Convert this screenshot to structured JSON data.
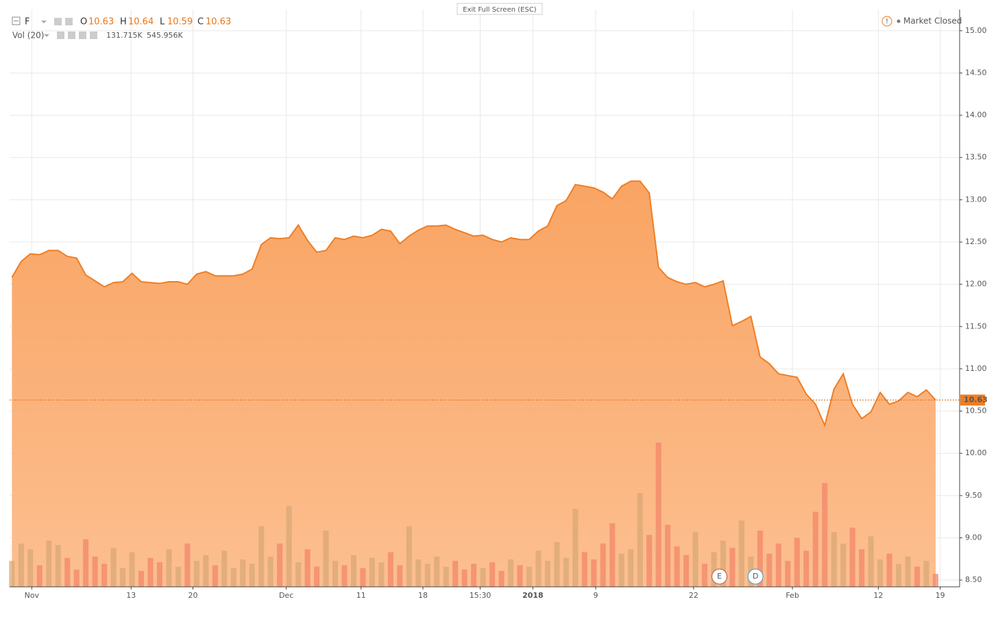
{
  "chart_data": {
    "type": "area",
    "symbol": "F",
    "ohlc": {
      "o_label": "O",
      "open": 10.63,
      "h_label": "H",
      "high": 10.64,
      "l_label": "L",
      "low": 10.59,
      "c_label": "C",
      "close": 10.63
    },
    "volume_label": "Vol (20)",
    "volume_values_text": [
      "131.715K",
      "545.956K"
    ],
    "status": "Market Closed",
    "exit_button": "Exit Full Screen (ESC)",
    "last_price": 10.63,
    "color": "#ef7d22",
    "volume_colors": {
      "up": "#d9a875",
      "down": "#f3876a"
    },
    "x": [
      0,
      1,
      2,
      3,
      4,
      5,
      6,
      7,
      8,
      9,
      10,
      11,
      12,
      13,
      14,
      15,
      16,
      17,
      18,
      19,
      20,
      21,
      22,
      23,
      24,
      25,
      26,
      27,
      28,
      29,
      30,
      31,
      32,
      33,
      34,
      35,
      36,
      37,
      38,
      39,
      40,
      41,
      42,
      43,
      44,
      45,
      46,
      47,
      48,
      49,
      50,
      51,
      52,
      53,
      54,
      55,
      56,
      57,
      58,
      59,
      60,
      61,
      62,
      63,
      64,
      65,
      66,
      67,
      68,
      69,
      70,
      71,
      72,
      73,
      74,
      75,
      76,
      77,
      78,
      79,
      80,
      81,
      82,
      83,
      84,
      85,
      86,
      87,
      88,
      89,
      90,
      91,
      92,
      93,
      94,
      95,
      96,
      97,
      98,
      99,
      100
    ],
    "series": [
      {
        "name": "F",
        "values": [
          12.08,
          12.27,
          12.36,
          12.35,
          12.4,
          12.4,
          12.33,
          12.31,
          12.11,
          12.04,
          11.97,
          12.02,
          12.03,
          12.13,
          12.03,
          12.02,
          12.01,
          12.03,
          12.03,
          12.0,
          12.12,
          12.15,
          12.1,
          12.1,
          12.1,
          12.12,
          12.18,
          12.47,
          12.55,
          12.54,
          12.55,
          12.7,
          12.52,
          12.38,
          12.4,
          12.55,
          12.53,
          12.57,
          12.55,
          12.58,
          12.65,
          12.63,
          12.48,
          12.57,
          12.64,
          12.69,
          12.69,
          12.7,
          12.65,
          12.61,
          12.57,
          12.58,
          12.53,
          12.5,
          12.55,
          12.53,
          12.53,
          12.63,
          12.69,
          12.93,
          12.99,
          13.18,
          13.16,
          13.14,
          13.09,
          13.01,
          13.16,
          13.22,
          13.22,
          13.08,
          12.2,
          12.08,
          12.03,
          12.0,
          12.02,
          11.97,
          12.0,
          12.04,
          11.51,
          11.56,
          11.62,
          11.14,
          11.06,
          10.94,
          10.92,
          10.9,
          10.7,
          10.58,
          10.33,
          10.76,
          10.94,
          10.58,
          10.41,
          10.49,
          10.72,
          10.58,
          10.62,
          10.72,
          10.67,
          10.75,
          10.63
        ]
      },
      {
        "name": "Vol (20)",
        "axis": "y2",
        "values": [
          180,
          300,
          260,
          150,
          320,
          290,
          200,
          120,
          330,
          210,
          160,
          270,
          130,
          240,
          110,
          200,
          170,
          260,
          140,
          300,
          180,
          220,
          150,
          250,
          130,
          190,
          160,
          420,
          210,
          300,
          560,
          170,
          260,
          140,
          390,
          180,
          150,
          220,
          130,
          200,
          170,
          240,
          150,
          420,
          190,
          160,
          210,
          140,
          180,
          120,
          160,
          130,
          170,
          110,
          190,
          150,
          140,
          250,
          180,
          310,
          200,
          540,
          240,
          190,
          300,
          440,
          230,
          260,
          650,
          360,
          1000,
          430,
          280,
          220,
          380,
          160,
          240,
          320,
          270,
          460,
          210,
          390,
          230,
          300,
          180,
          340,
          250,
          520,
          720,
          380,
          300,
          410,
          260,
          350,
          190,
          230,
          160,
          210,
          140,
          180,
          90
        ]
      }
    ],
    "xlim": [
      -0.25,
      102.6
    ],
    "xticks": [
      {
        "value": 2.15,
        "label": "Nov"
      },
      {
        "value": 12.9,
        "label": "13"
      },
      {
        "value": 19.6,
        "label": "20"
      },
      {
        "value": 29.7,
        "label": "Dec"
      },
      {
        "value": 37.8,
        "label": "11"
      },
      {
        "value": 44.5,
        "label": "18"
      },
      {
        "value": 50.7,
        "label": "15:30"
      },
      {
        "value": 56.4,
        "label": "2018"
      },
      {
        "value": 63.2,
        "label": "9"
      },
      {
        "value": 73.8,
        "label": "22"
      },
      {
        "value": 84.5,
        "label": "Feb"
      },
      {
        "value": 93.8,
        "label": "12"
      },
      {
        "value": 100.5,
        "label": "19"
      }
    ],
    "ylim": [
      8.42,
      15.25
    ],
    "yticks": [
      {
        "value": 8.5,
        "label": "8.50"
      },
      {
        "value": 9,
        "label": "9.00"
      },
      {
        "value": 9.5,
        "label": "9.50"
      },
      {
        "value": 10,
        "label": "10.00"
      },
      {
        "value": 10.5,
        "label": "10.50"
      },
      {
        "value": 11,
        "label": "11.00"
      },
      {
        "value": 11.5,
        "label": "11.50"
      },
      {
        "value": 12,
        "label": "12.00"
      },
      {
        "value": 12.5,
        "label": "12.50"
      },
      {
        "value": 13,
        "label": "13.00"
      },
      {
        "value": 13.5,
        "label": "13.50"
      },
      {
        "value": 14,
        "label": "14.00"
      },
      {
        "value": 14.5,
        "label": "14.50"
      },
      {
        "value": 15,
        "label": "15.00"
      }
    ],
    "y2lim": [
      0,
      4000
    ],
    "grid": true,
    "events": [
      {
        "x": 76.6,
        "label": "E",
        "color": "#c0504d"
      },
      {
        "x": 80.5,
        "label": "D",
        "color": "#3a9bc9"
      }
    ]
  }
}
